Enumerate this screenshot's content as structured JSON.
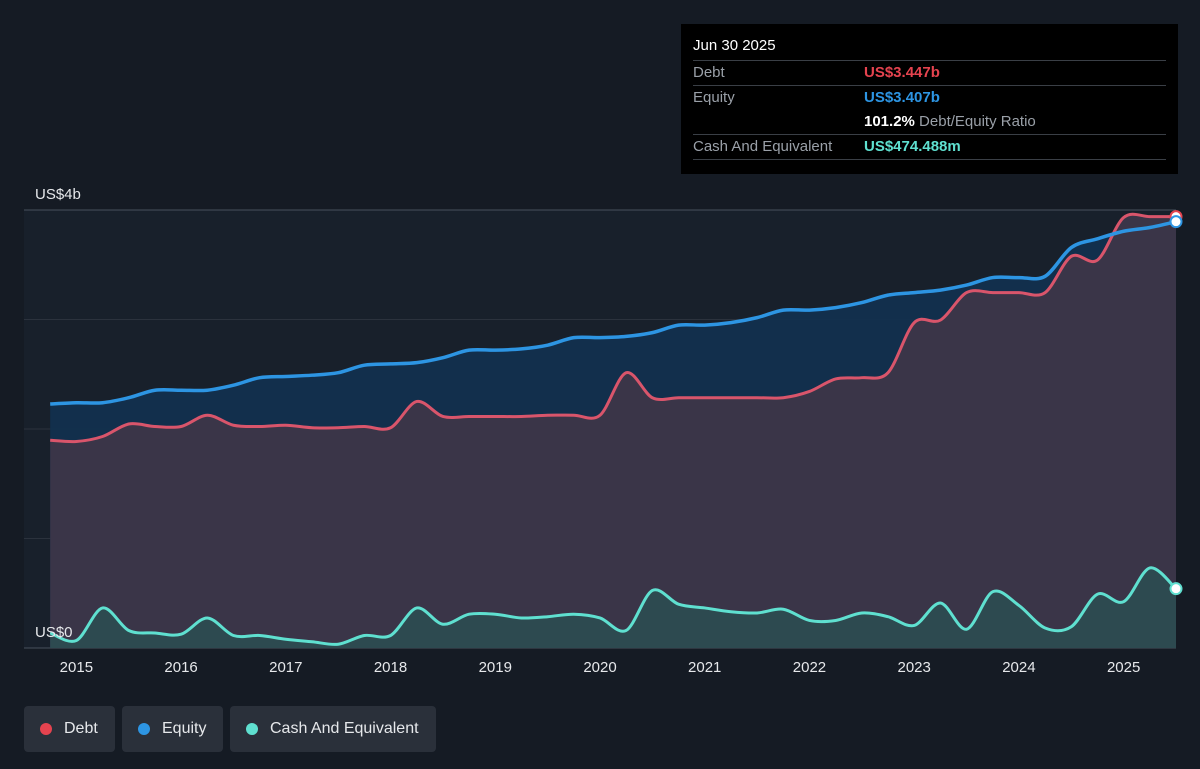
{
  "tooltip": {
    "date": "Jun 30 2025",
    "debt_label": "Debt",
    "debt_value": "US$3.447b",
    "equity_label": "Equity",
    "equity_value": "US$3.407b",
    "ratio_value": "101.2%",
    "ratio_label": "Debt/Equity Ratio",
    "cash_label": "Cash And Equivalent",
    "cash_value": "US$474.488m"
  },
  "legend": [
    {
      "label": "Debt",
      "color": "#e5434f"
    },
    {
      "label": "Equity",
      "color": "#2d95e3"
    },
    {
      "label": "Cash And Equivalent",
      "color": "#5fe0d0"
    }
  ],
  "colors": {
    "background": "#151b24",
    "debt": "#e5434f",
    "equity": "#2d95e3",
    "cash": "#5fe0d0"
  },
  "chart_data": {
    "type": "line",
    "ylim": [
      0,
      3.5
    ],
    "y_unit": "US$ billions",
    "xlim": [
      2014.5,
      2025.5
    ],
    "x_ticks": [
      "2015",
      "2016",
      "2017",
      "2018",
      "2019",
      "2020",
      "2021",
      "2022",
      "2023",
      "2024",
      "2025"
    ],
    "y_tick_labels": [
      {
        "value": 3.5,
        "label": "US$4b"
      },
      {
        "value": 0,
        "label": "US$0"
      }
    ],
    "grid": true,
    "legend_position": "bottom-left",
    "series": [
      {
        "name": "Debt",
        "x": [
          2014.75,
          2015.0,
          2015.25,
          2015.5,
          2015.75,
          2016.0,
          2016.25,
          2016.5,
          2016.75,
          2017.0,
          2017.25,
          2017.5,
          2017.75,
          2018.0,
          2018.25,
          2018.5,
          2018.75,
          2019.0,
          2019.25,
          2019.5,
          2019.75,
          2020.0,
          2020.25,
          2020.5,
          2020.75,
          2021.0,
          2021.25,
          2021.5,
          2021.75,
          2022.0,
          2022.25,
          2022.5,
          2022.75,
          2023.0,
          2023.25,
          2023.5,
          2023.75,
          2024.0,
          2024.25,
          2024.5,
          2024.75,
          2025.0,
          2025.25,
          2025.5
        ],
        "values": [
          1.66,
          1.65,
          1.69,
          1.79,
          1.77,
          1.77,
          1.86,
          1.78,
          1.77,
          1.78,
          1.76,
          1.76,
          1.77,
          1.76,
          1.97,
          1.85,
          1.85,
          1.85,
          1.85,
          1.86,
          1.86,
          1.86,
          2.2,
          2.0,
          2.0,
          2.0,
          2.0,
          2.0,
          2.0,
          2.05,
          2.15,
          2.16,
          2.2,
          2.6,
          2.62,
          2.84,
          2.84,
          2.84,
          2.84,
          3.13,
          3.1,
          3.44,
          3.447,
          3.447
        ]
      },
      {
        "name": "Equity",
        "x": [
          2014.75,
          2015.0,
          2015.25,
          2015.5,
          2015.75,
          2016.0,
          2016.25,
          2016.5,
          2016.75,
          2017.0,
          2017.25,
          2017.5,
          2017.75,
          2018.0,
          2018.25,
          2018.5,
          2018.75,
          2019.0,
          2019.25,
          2019.5,
          2019.75,
          2020.0,
          2020.25,
          2020.5,
          2020.75,
          2021.0,
          2021.25,
          2021.5,
          2021.75,
          2022.0,
          2022.25,
          2022.5,
          2022.75,
          2023.0,
          2023.25,
          2023.5,
          2023.75,
          2024.0,
          2024.25,
          2024.5,
          2024.75,
          2025.0,
          2025.25,
          2025.5
        ],
        "values": [
          1.95,
          1.96,
          1.96,
          2.0,
          2.06,
          2.06,
          2.06,
          2.1,
          2.16,
          2.17,
          2.18,
          2.2,
          2.26,
          2.27,
          2.28,
          2.32,
          2.38,
          2.38,
          2.39,
          2.42,
          2.48,
          2.48,
          2.49,
          2.52,
          2.58,
          2.58,
          2.6,
          2.64,
          2.7,
          2.7,
          2.72,
          2.76,
          2.82,
          2.84,
          2.86,
          2.9,
          2.96,
          2.96,
          2.97,
          3.2,
          3.27,
          3.33,
          3.36,
          3.407
        ]
      },
      {
        "name": "Cash And Equivalent",
        "x": [
          2014.75,
          2015.0,
          2015.25,
          2015.5,
          2015.75,
          2016.0,
          2016.25,
          2016.5,
          2016.75,
          2017.0,
          2017.25,
          2017.5,
          2017.75,
          2018.0,
          2018.25,
          2018.5,
          2018.75,
          2019.0,
          2019.25,
          2019.5,
          2019.75,
          2020.0,
          2020.25,
          2020.5,
          2020.75,
          2021.0,
          2021.25,
          2021.5,
          2021.75,
          2022.0,
          2022.25,
          2022.5,
          2022.75,
          2023.0,
          2023.25,
          2023.5,
          2023.75,
          2024.0,
          2024.25,
          2024.5,
          2024.75,
          2025.0,
          2025.25,
          2025.5
        ],
        "values": [
          0.12,
          0.06,
          0.32,
          0.14,
          0.12,
          0.11,
          0.24,
          0.1,
          0.1,
          0.07,
          0.05,
          0.03,
          0.1,
          0.1,
          0.32,
          0.19,
          0.27,
          0.27,
          0.24,
          0.25,
          0.27,
          0.24,
          0.14,
          0.46,
          0.35,
          0.32,
          0.29,
          0.28,
          0.31,
          0.22,
          0.22,
          0.28,
          0.25,
          0.18,
          0.36,
          0.15,
          0.45,
          0.34,
          0.16,
          0.17,
          0.43,
          0.37,
          0.64,
          0.474
        ]
      }
    ]
  }
}
